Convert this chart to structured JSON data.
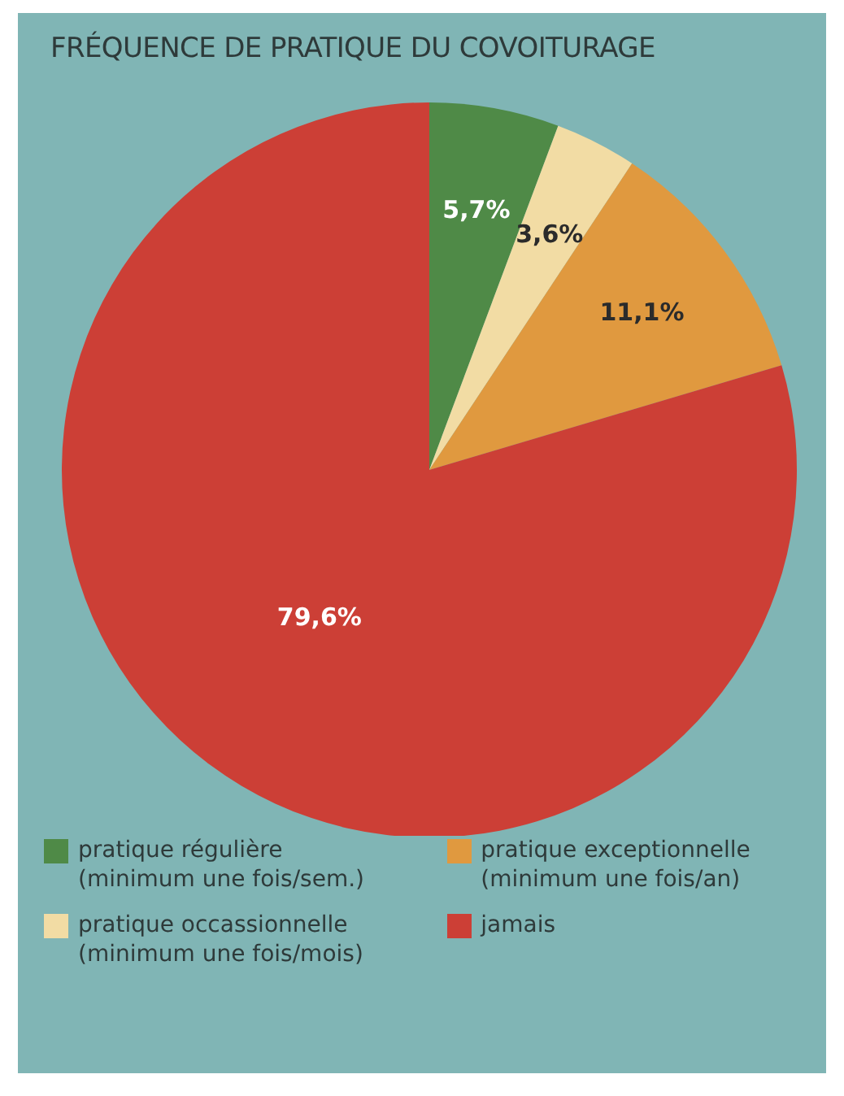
{
  "chart_data": {
    "type": "pie",
    "title": "FRÉQUENCE DE PRATIQUE DU COVOITURAGE",
    "categories": [
      "pratique régulière\n(minimum une fois/sem.)",
      "pratique occassionnelle\n(minimum une fois/mois)",
      "pratique exceptionnelle\n(minimum une fois/an)",
      "jamais"
    ],
    "values": [
      5.7,
      3.6,
      11.1,
      79.6
    ],
    "colors": [
      "#4f8a47",
      "#f2dca4",
      "#e0993f",
      "#cc3f36"
    ],
    "value_labels": [
      "5,7%",
      "3,6%",
      "11,1%",
      "79,6%"
    ],
    "legend": "bottom"
  }
}
